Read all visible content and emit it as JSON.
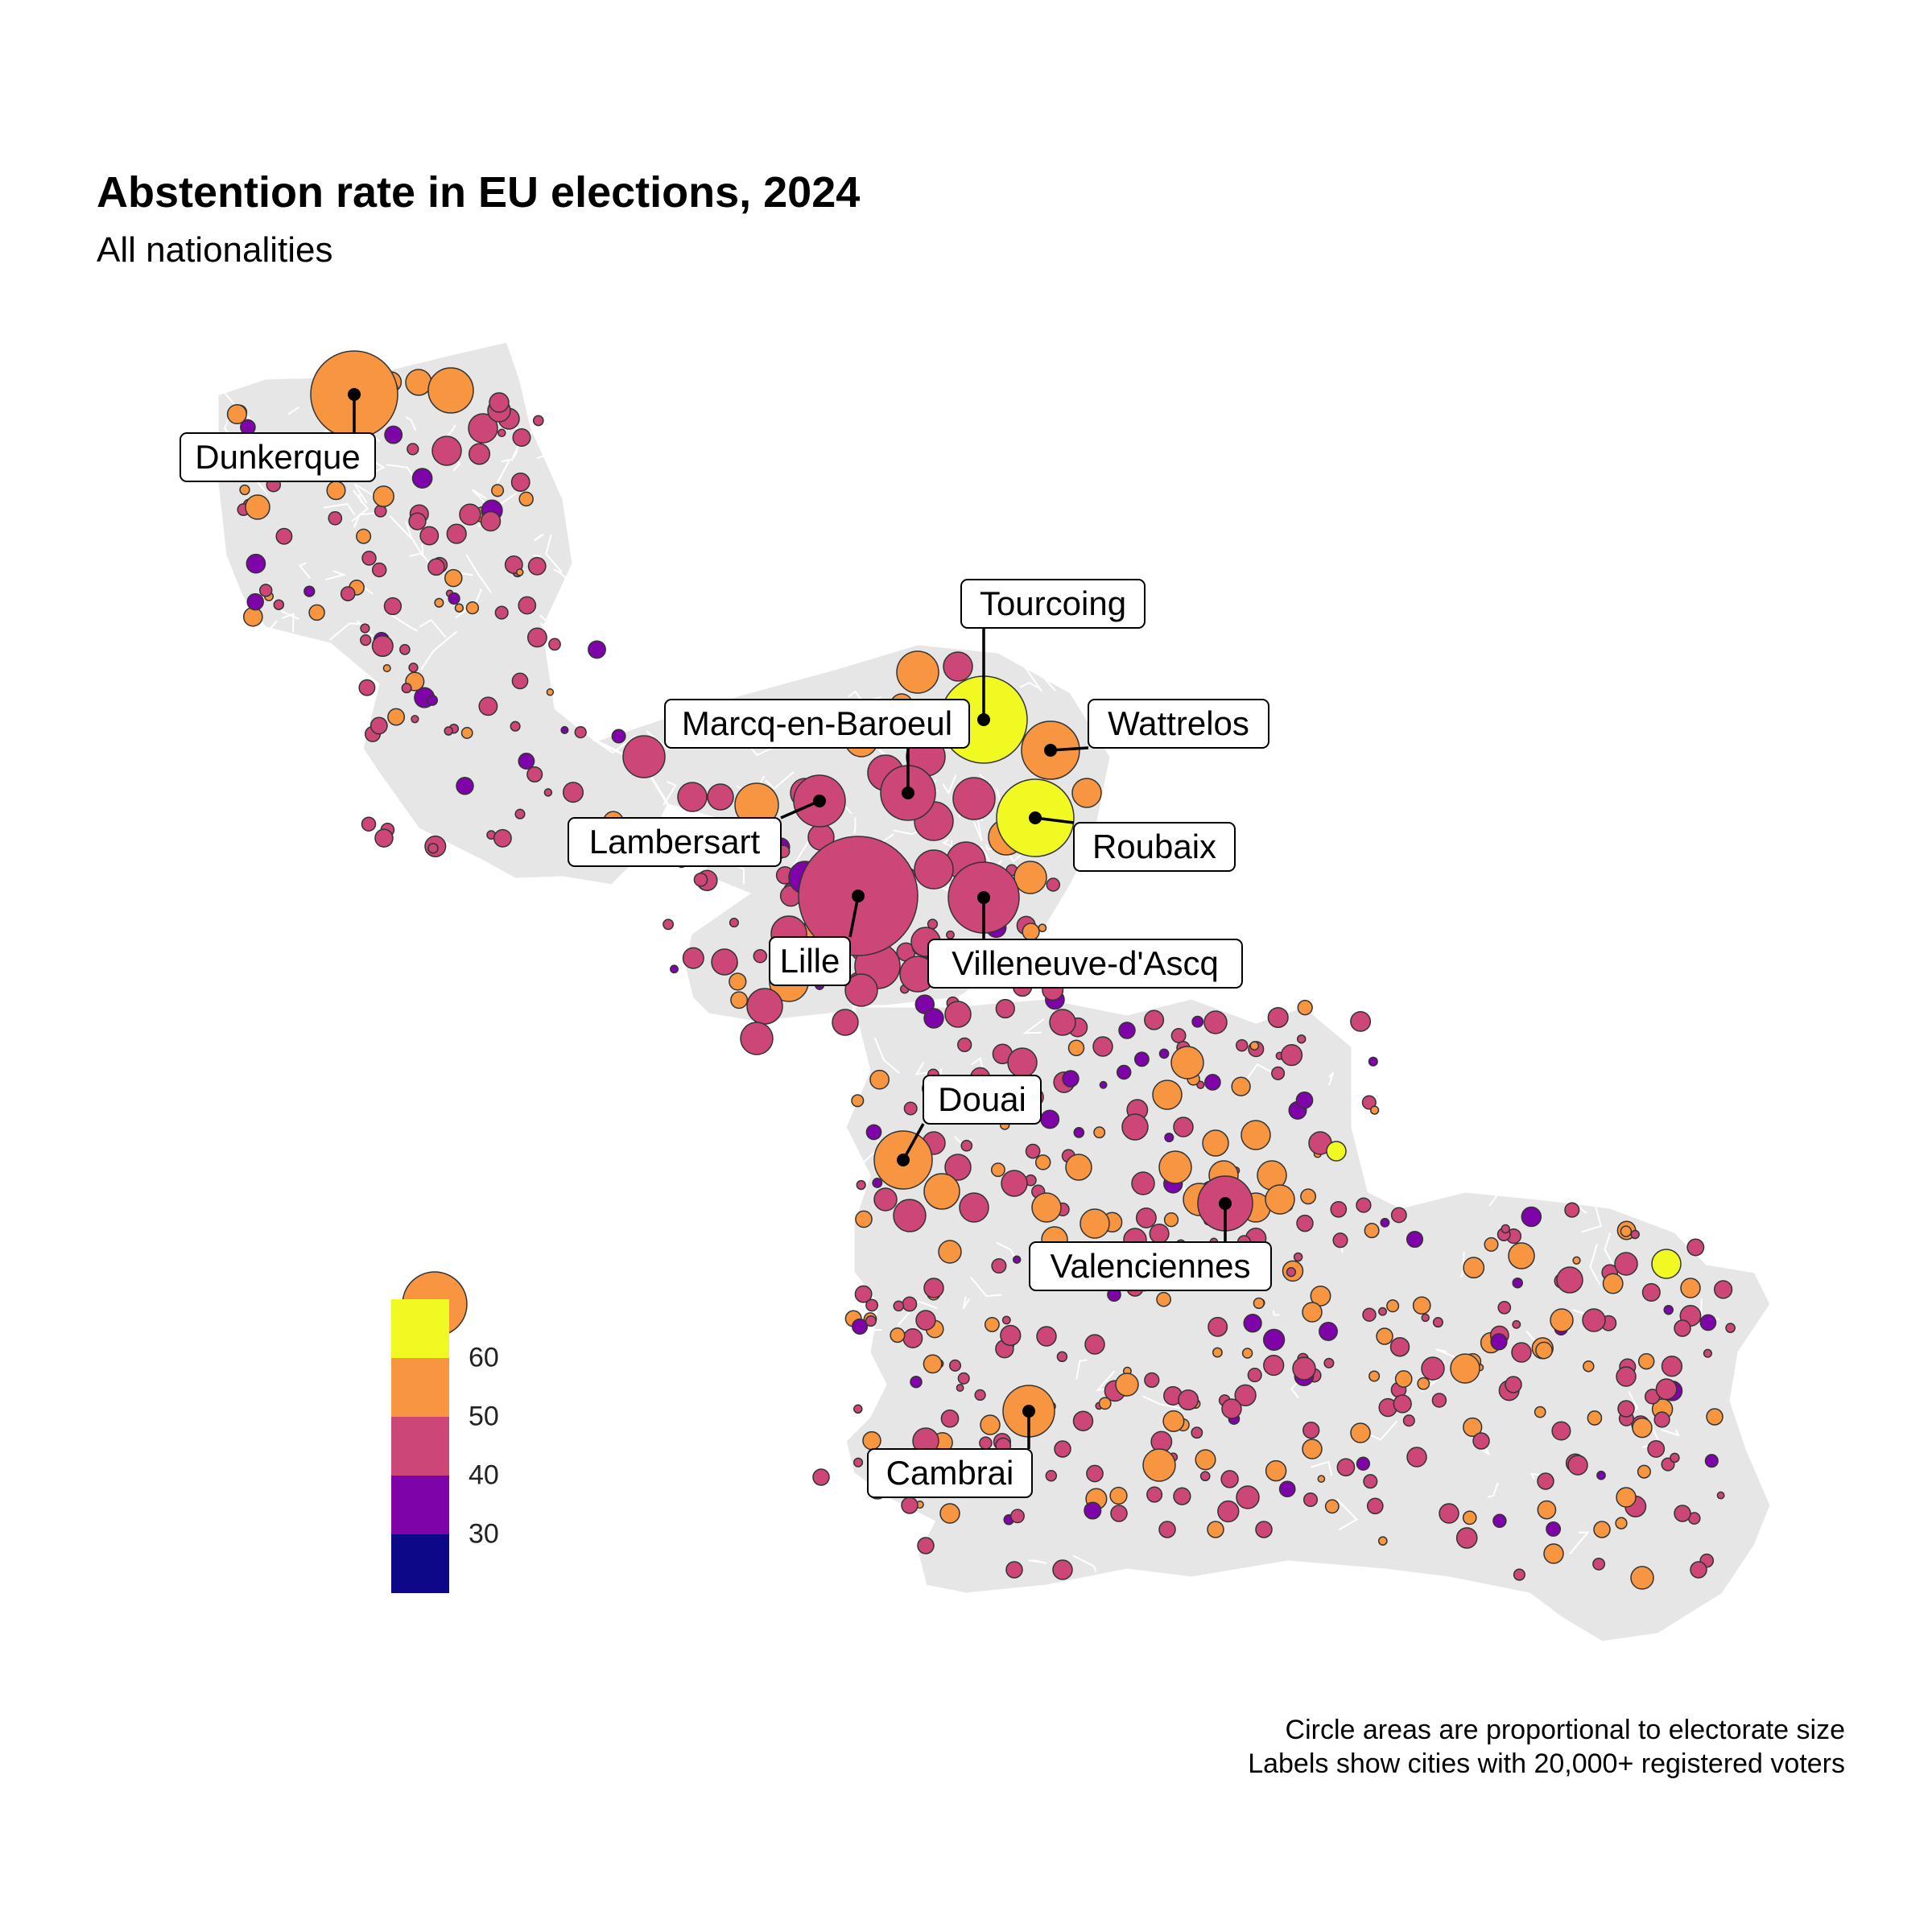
{
  "title": "Abstention rate in EU elections, 2024",
  "subtitle": "All nationalities",
  "caption": {
    "line1": "Circle areas are proportional to electorate size",
    "line2": "Labels show cities with 20,000+ registered voters"
  },
  "legend": {
    "bins": [
      {
        "color": "#f0f921"
      },
      {
        "color": "#f89540"
      },
      {
        "color": "#cc4778"
      },
      {
        "color": "#7e03a8"
      },
      {
        "color": "#0d0887"
      }
    ],
    "ticks": [
      "60",
      "50",
      "40",
      "30"
    ]
  },
  "colors": {
    "region_fill": "#e6e6e6",
    "region_border": "#ffffff",
    "circle_stroke": "#333333",
    "label_border": "#000000"
  },
  "cities": [
    {
      "name": "Dunkerque",
      "abstention_bin": "50-60"
    },
    {
      "name": "Tourcoing",
      "abstention_bin": "60+"
    },
    {
      "name": "Marcq-en-Baroeul",
      "abstention_bin": "40-50"
    },
    {
      "name": "Wattrelos",
      "abstention_bin": "50-60"
    },
    {
      "name": "Lambersart",
      "abstention_bin": "40-50"
    },
    {
      "name": "Roubaix",
      "abstention_bin": "60+"
    },
    {
      "name": "Lille",
      "abstention_bin": "40-50"
    },
    {
      "name": "Villeneuve-d'Ascq",
      "abstention_bin": "40-50"
    },
    {
      "name": "Douai",
      "abstention_bin": "50-60"
    },
    {
      "name": "Valenciennes",
      "abstention_bin": "40-50"
    },
    {
      "name": "Cambrai",
      "abstention_bin": "50-60"
    }
  ]
}
